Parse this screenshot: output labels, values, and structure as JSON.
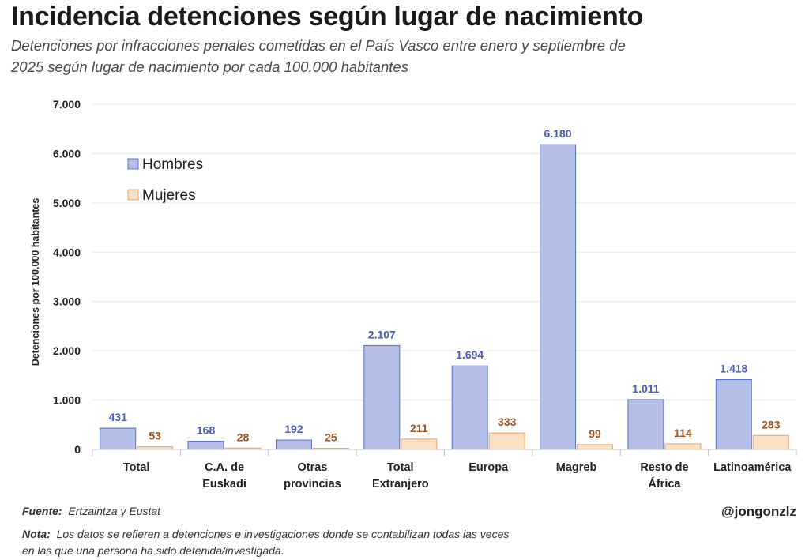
{
  "header": {
    "title": "Incidencia detenciones según lugar de nacimiento",
    "subtitle": "Detenciones por infracciones penales cometidas en el País Vasco entre enero y septiembre de 2025 según lugar de nacimiento por cada 100.000 habitantes"
  },
  "chart_data": {
    "type": "bar",
    "categories": [
      [
        "Total"
      ],
      [
        "C.A. de",
        "Euskadi"
      ],
      [
        "Otras",
        "provincias"
      ],
      [
        "Total",
        "Extranjero"
      ],
      [
        "Europa"
      ],
      [
        "Magreb"
      ],
      [
        "Resto de",
        "África"
      ],
      [
        "Latinoamérica"
      ]
    ],
    "series": [
      {
        "name": "Hombres",
        "values": [
          431,
          168,
          192,
          2107,
          1694,
          6180,
          1011,
          1418
        ],
        "labels": [
          "431",
          "168",
          "192",
          "2.107",
          "1.694",
          "6.180",
          "1.011",
          "1.418"
        ],
        "color": "#b4bfe8",
        "stroke": "#5a6fc9",
        "label_color": "#4a5db8"
      },
      {
        "name": "Mujeres",
        "values": [
          53,
          28,
          25,
          211,
          333,
          99,
          114,
          283
        ],
        "labels": [
          "53",
          "28",
          "25",
          "211",
          "333",
          "99",
          "114",
          "283"
        ],
        "color": "#fbe0c4",
        "stroke": "#e8a36a",
        "label_color": "#a0541c"
      }
    ],
    "ylabel": "Detenciones por 100.000 habitantes",
    "ylim": [
      0,
      7000
    ],
    "yticks": [
      0,
      1000,
      2000,
      3000,
      4000,
      5000,
      6000,
      7000
    ],
    "ytick_labels": [
      "0",
      "1.000",
      "2.000",
      "3.000",
      "4.000",
      "5.000",
      "6.000",
      "7.000"
    ],
    "grid": true,
    "legend_position": "top-left"
  },
  "footer": {
    "fuente_label": "Fuente:",
    "fuente_text": "Ertzaintza y Eustat",
    "nota_label": "Nota:",
    "nota_text": "Los datos se refieren a detenciones e investigaciones donde se contabilizan todas las veces en las que una persona ha sido detenida/investigada.",
    "handle": "@jongonzlz"
  }
}
